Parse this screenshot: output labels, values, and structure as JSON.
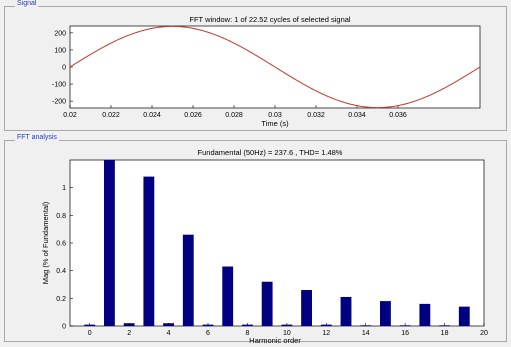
{
  "signal_panel": {
    "title": "Signal"
  },
  "fft_panel": {
    "title": "FFT analysis"
  },
  "chart_data": [
    {
      "type": "line",
      "title": "FFT window: 1 of 22.52 cycles of selected signal",
      "xlabel": "Time (s)",
      "ylabel": "",
      "xlim": [
        0.02,
        0.04
      ],
      "ylim": [
        -240,
        240
      ],
      "xticks": [
        0.02,
        0.022,
        0.024,
        0.026,
        0.028,
        0.03,
        0.032,
        0.034,
        0.036
      ],
      "xtick_labels": [
        "0.02",
        "0.022",
        "0.024",
        "0.026",
        "0.028",
        "0.03",
        "0.032",
        "0.034",
        "0.036"
      ],
      "yticks": [
        200,
        100,
        0,
        -100,
        -200
      ],
      "ytick_labels": [
        "200",
        "100",
        "0",
        "-100",
        "-200"
      ],
      "series": [
        {
          "frequency_hz": 50,
          "amplitude": 237.6,
          "color": "#c0392b"
        }
      ],
      "grid": false
    },
    {
      "type": "bar",
      "title": "Fundamental (50Hz) = 237.6 , THD= 1.48%",
      "xlabel": "Harmonic order",
      "ylabel": "Mag (% of Fundamental)",
      "xlim": [
        -1,
        20
      ],
      "ylim": [
        0,
        1.2
      ],
      "xticks": [
        0,
        2,
        4,
        6,
        8,
        10,
        12,
        14,
        16,
        18,
        20
      ],
      "xtick_labels": [
        "0",
        "2",
        "4",
        "6",
        "8",
        "10",
        "12",
        "14",
        "16",
        "18",
        "20"
      ],
      "yticks": [
        0,
        0.2,
        0.4,
        0.6,
        0.8,
        1
      ],
      "ytick_labels": [
        "0",
        "0.2",
        "0.4",
        "0.6",
        "0.8",
        "1"
      ],
      "categories": [
        0,
        1,
        2,
        3,
        4,
        5,
        6,
        7,
        8,
        9,
        10,
        11,
        12,
        13,
        14,
        15,
        16,
        17,
        18,
        19
      ],
      "values": [
        0.01,
        1.2,
        0.02,
        1.08,
        0.02,
        0.66,
        0.01,
        0.43,
        0.01,
        0.32,
        0.01,
        0.26,
        0.01,
        0.21,
        0.005,
        0.18,
        0.005,
        0.16,
        0.005,
        0.14
      ],
      "bar_color": "#000080",
      "grid": false
    }
  ]
}
